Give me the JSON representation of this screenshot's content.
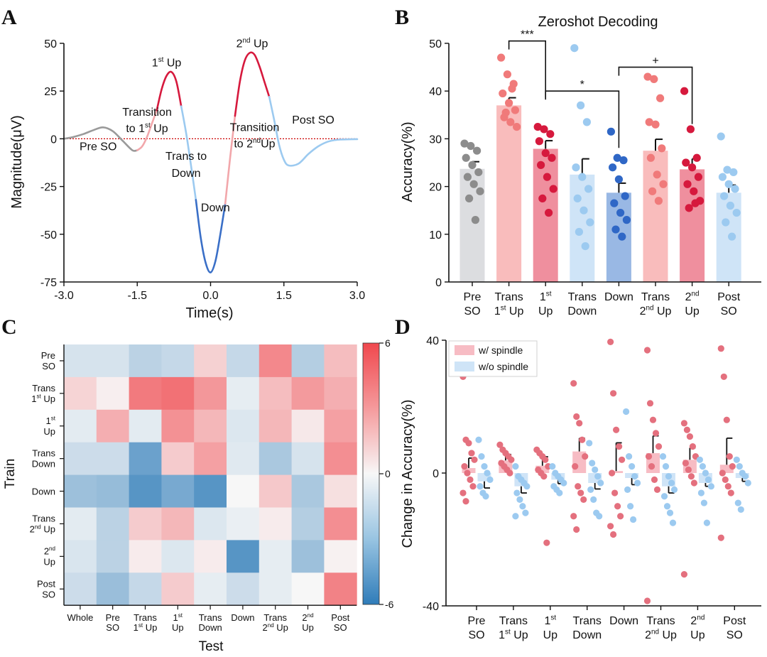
{
  "panels": {
    "A": "A",
    "B": "B",
    "C": "C",
    "D": "D"
  },
  "colors": {
    "pre": "#a9a9a9",
    "up": "#d6193d",
    "trans_up": "#f19a9e",
    "trans_down": "#9ccaf0",
    "down": "#3a6fc7",
    "post": "#9ccaf0",
    "threshold": "#cc0000"
  },
  "chart_data": [
    {
      "panel": "A",
      "type": "line",
      "xlabel": "Time(s)",
      "ylabel": "Magnitude(μV)",
      "xlim": [
        -3.0,
        3.0
      ],
      "ylim": [
        -75,
        50
      ],
      "xticks": [
        "-3.0",
        "-1.5",
        "0.0",
        "1.5",
        "3.0"
      ],
      "yticks": [
        "50",
        "25",
        "0",
        "-25",
        "-50",
        "-75"
      ],
      "threshold": 0,
      "segments": [
        {
          "phase": "Pre SO",
          "color": "#9a9a9a",
          "x": [
            -3.0,
            -2.8,
            -2.6,
            -2.4,
            -2.2,
            -2.0,
            -1.8,
            -1.6,
            -1.5
          ],
          "y": [
            0,
            1,
            2.5,
            4.5,
            6,
            4,
            -1,
            -6,
            -6
          ]
        },
        {
          "phase": "Transition to 1st Up",
          "color": "#f2a7ab",
          "x": [
            -1.5,
            -1.4,
            -1.3,
            -1.2,
            -1.1
          ],
          "y": [
            -6,
            -4,
            1,
            8,
            15
          ]
        },
        {
          "phase": "1st Up",
          "color": "#d6193d",
          "x": [
            -1.1,
            -1.0,
            -0.9,
            -0.8,
            -0.7,
            -0.6
          ],
          "y": [
            15,
            26,
            33,
            35,
            30,
            17
          ]
        },
        {
          "phase": "Trans to Down",
          "color": "#9ccaf0",
          "x": [
            -0.6,
            -0.5,
            -0.4,
            -0.3
          ],
          "y": [
            17,
            3,
            -14,
            -32
          ]
        },
        {
          "phase": "Down",
          "color": "#3a6fc7",
          "x": [
            -0.3,
            -0.2,
            -0.1,
            0.0,
            0.1,
            0.2,
            0.3
          ],
          "y": [
            -32,
            -52,
            -65,
            -70,
            -64,
            -50,
            -34
          ]
        },
        {
          "phase": "Transition to 2nd Up",
          "color": "#f2a7ab",
          "x": [
            0.3,
            0.4,
            0.5
          ],
          "y": [
            -34,
            -10,
            12
          ]
        },
        {
          "phase": "2nd Up",
          "color": "#d6193d",
          "x": [
            0.5,
            0.6,
            0.7,
            0.8,
            0.9,
            1.0,
            1.1,
            1.2
          ],
          "y": [
            12,
            30,
            41,
            45,
            44,
            38,
            30,
            22
          ]
        },
        {
          "phase": "Post SO",
          "color": "#9ccaf0",
          "x": [
            1.2,
            1.3,
            1.4,
            1.5,
            1.6,
            1.8,
            2.0,
            2.2,
            2.4,
            2.6,
            2.8,
            3.0
          ],
          "y": [
            22,
            10,
            -3,
            -11,
            -14,
            -13,
            -8,
            -4,
            -1.5,
            -0.5,
            -0.3,
            -0.2
          ]
        }
      ],
      "annotations": [
        {
          "text": "1",
          "sup": "st",
          "tail": " Up",
          "x": -0.9,
          "y": 38
        },
        {
          "text": "2",
          "sup": "nd",
          "tail": " Up",
          "x": 0.85,
          "y": 48
        },
        {
          "text": "Transition",
          "x": -1.3,
          "y": 12
        },
        {
          "text": "to 1",
          "sup": "st",
          "tail": " Up",
          "x": -1.3,
          "y": 3.5
        },
        {
          "text": "Transition",
          "x": 0.9,
          "y": 4
        },
        {
          "text": "to 2",
          "sup": "nd",
          "tail": "Up",
          "x": 0.9,
          "y": -4.5
        },
        {
          "text": "Pre SO",
          "x": -2.3,
          "y": -6
        },
        {
          "text": "Trans to",
          "x": -0.5,
          "y": -11
        },
        {
          "text": "Down",
          "x": -0.5,
          "y": -20
        },
        {
          "text": "Down",
          "x": 0.1,
          "y": -38
        },
        {
          "text": "Post SO",
          "x": 2.1,
          "y": 8
        }
      ]
    },
    {
      "panel": "B",
      "type": "bar",
      "title": "Zeroshot Decoding",
      "ylabel": "Accuracy(%)",
      "ylim": [
        0,
        50
      ],
      "yticks": [
        "0",
        "10",
        "20",
        "30",
        "40",
        "50"
      ],
      "categories": [
        {
          "l1": "Pre",
          "l2": "SO"
        },
        {
          "l1": "Trans",
          "l2": "1",
          "sup": "st",
          "tail": " Up"
        },
        {
          "l1": "1",
          "l1sup": "st",
          "l2": "Up"
        },
        {
          "l1": "Trans",
          "l2": "Down"
        },
        {
          "l1": "Down",
          "l2": ""
        },
        {
          "l1": "Trans",
          "l2": "2",
          "sup": "nd",
          "tail": " Up"
        },
        {
          "l1": "2",
          "l1sup": "nd",
          "l2": "Up"
        },
        {
          "l1": "Post",
          "l2": "SO"
        }
      ],
      "values": [
        23.7,
        37.0,
        27.9,
        22.5,
        18.7,
        27.5,
        23.6,
        18.7
      ],
      "errors": [
        1.5,
        1.6,
        1.7,
        3.3,
        2.0,
        2.4,
        2.2,
        1.6
      ],
      "bar_colors": [
        "#dcdde0",
        "#f9bcbc",
        "#ef8f9e",
        "#cfe4f7",
        "#99b8e4",
        "#f9bcbc",
        "#ef8f9e",
        "#cfe4f7"
      ],
      "point_colors": [
        "#8c8c8c",
        "#f07a7a",
        "#d6193d",
        "#9ccaf0",
        "#2f67c6",
        "#f07a7a",
        "#d6193d",
        "#9ccaf0"
      ],
      "points": [
        [
          29,
          28.5,
          27.5,
          26,
          24.5,
          23,
          22,
          20.5,
          19,
          17.5,
          13
        ],
        [
          47,
          43.5,
          41.5,
          39.5,
          37.5,
          36,
          34.5,
          33.5,
          32.5,
          35.5,
          40.5
        ],
        [
          32.5,
          32,
          31,
          29.5,
          27,
          26,
          24.5,
          22,
          19.5,
          17.5,
          14.5
        ],
        [
          49,
          37,
          33.5,
          24,
          22,
          19.5,
          17.5,
          15,
          12.5,
          10.5,
          7.5
        ],
        [
          31.5,
          26,
          25.5,
          24,
          21.5,
          18,
          16.5,
          14.5,
          13,
          11,
          9.5
        ],
        [
          43,
          42.5,
          38.5,
          33.5,
          33,
          28,
          26,
          22.5,
          20.5,
          19,
          17
        ],
        [
          40,
          32,
          26,
          25,
          24,
          22,
          20.5,
          19,
          17,
          15.5,
          16.5
        ],
        [
          30.5,
          23.5,
          23,
          22,
          20.5,
          19.5,
          18,
          16,
          14.5,
          12.5,
          9.5
        ]
      ],
      "significance": [
        {
          "label": "***",
          "from": 1,
          "to": 2,
          "y": 50.5
        },
        {
          "label": "*",
          "from": 2,
          "to": 4,
          "y": 40
        },
        {
          "label": "+",
          "from": 4,
          "to": 6,
          "y": 45
        }
      ]
    },
    {
      "panel": "C",
      "type": "heatmap",
      "xlabel": "Test",
      "ylabel": "Train",
      "x_categories": [
        {
          "l1": "Whole",
          "l2": ""
        },
        {
          "l1": "Pre",
          "l2": "SO"
        },
        {
          "l1": "Trans",
          "l2": "1",
          "sup": "st",
          "tail": " Up"
        },
        {
          "l1": "1",
          "l1sup": "st",
          "l2": "Up"
        },
        {
          "l1": "Trans",
          "l2": "Down"
        },
        {
          "l1": "Down",
          "l2": ""
        },
        {
          "l1": "Trans",
          "l2": "2",
          "sup": "nd",
          "tail": " Up"
        },
        {
          "l1": "2",
          "l1sup": "nd",
          "l2": "Up"
        },
        {
          "l1": "Post",
          "l2": "SO"
        }
      ],
      "y_categories": [
        {
          "l1": "Pre",
          "l2": "SO"
        },
        {
          "l1": "Trans",
          "l2": "1",
          "sup": "st",
          "tail": " Up"
        },
        {
          "l1": "1",
          "l1sup": "st",
          "l2": "Up"
        },
        {
          "l1": "Trans",
          "l2": "Down"
        },
        {
          "l1": "Down",
          "l2": ""
        },
        {
          "l1": "Trans",
          "l2": "2",
          "sup": "nd",
          "tail": " Up"
        },
        {
          "l1": "2",
          "l1sup": "nd",
          "l2": "Up"
        },
        {
          "l1": "Post",
          "l2": "SO"
        }
      ],
      "zlim": [
        -6,
        6
      ],
      "colorbar_ticks": [
        "6",
        "0",
        "-6"
      ],
      "values": [
        [
          -1.0,
          -1.0,
          -1.8,
          -1.5,
          1.3,
          -1.5,
          3.8,
          -2.0,
          2.0
        ],
        [
          1.2,
          0.3,
          4.3,
          4.6,
          3.3,
          -0.5,
          2.0,
          3.2,
          2.5
        ],
        [
          -0.6,
          2.5,
          -0.6,
          3.5,
          2.2,
          -0.8,
          2.2,
          0.5,
          3.0
        ],
        [
          -1.3,
          -1.3,
          -4.2,
          1.5,
          3.0,
          -0.7,
          -2.3,
          -1.0,
          3.6
        ],
        [
          -2.7,
          -2.9,
          -4.8,
          -3.8,
          -4.8,
          0.0,
          1.6,
          -2.3,
          0.8
        ],
        [
          -0.6,
          -1.8,
          1.5,
          2.2,
          -0.8,
          -0.4,
          0.4,
          -2.0,
          3.6
        ],
        [
          -0.9,
          -1.8,
          0.4,
          -0.8,
          0.4,
          -4.8,
          -0.5,
          -2.7,
          0.2
        ],
        [
          -1.3,
          -2.8,
          -1.5,
          1.5,
          -0.5,
          -1.3,
          -0.5,
          0.0,
          4.0
        ]
      ]
    },
    {
      "panel": "D",
      "type": "bar",
      "ylabel": "Change in Accuracy(%)",
      "ylim": [
        -40,
        40
      ],
      "yticks": [
        "40",
        "0",
        "-40"
      ],
      "categories": [
        {
          "l1": "Pre",
          "l2": "SO"
        },
        {
          "l1": "Trans",
          "l2": "1",
          "sup": "st",
          "tail": " Up"
        },
        {
          "l1": "1",
          "l1sup": "st",
          "l2": "Up"
        },
        {
          "l1": "Trans",
          "l2": "Down"
        },
        {
          "l1": "Down",
          "l2": ""
        },
        {
          "l1": "Trans",
          "l2": "2",
          "sup": "nd",
          "tail": " Up"
        },
        {
          "l1": "2",
          "l1sup": "nd",
          "l2": "Up"
        },
        {
          "l1": "Post",
          "l2": "SO"
        }
      ],
      "legend": {
        "position": "top-left",
        "entries": [
          "w/ spindle",
          "w/o spindle"
        ]
      },
      "series": [
        {
          "name": "w/ spindle",
          "bar_color": "#f7bcc4",
          "point_color": "#e4707e",
          "values": [
            1.5,
            3.8,
            2.2,
            6.5,
            0.6,
            6.0,
            4.0,
            2.5
          ],
          "errors": [
            3.0,
            1.8,
            2.7,
            4.0,
            8.5,
            5.2,
            3.6,
            8.0
          ],
          "points": [
            [
              29,
              10,
              9,
              6,
              4,
              2,
              0,
              -2,
              -4,
              -6,
              -8.5
            ],
            [
              8.5,
              7,
              6,
              5,
              4,
              3,
              2,
              1,
              0
            ],
            [
              7,
              6,
              5,
              4,
              2,
              1,
              0,
              -1,
              -21
            ],
            [
              27,
              17,
              15,
              10,
              5,
              2,
              -4,
              -6,
              -8,
              -13,
              -17
            ],
            [
              39.5,
              24,
              13,
              8,
              4,
              0,
              -6,
              -10,
              -13,
              -16,
              -18.5
            ],
            [
              37,
              21,
              16,
              12,
              8,
              5,
              2,
              -2,
              -5,
              -38.5
            ],
            [
              15,
              13,
              11,
              8,
              5,
              3,
              1,
              -1,
              -3,
              -30.5
            ],
            [
              37.5,
              29,
              16,
              5,
              2,
              0,
              -2,
              -4,
              -6,
              -19.5
            ]
          ]
        },
        {
          "name": "w/o spindle",
          "bar_color": "#cfe4f7",
          "point_color": "#9ccaf0",
          "values": [
            -2.5,
            -4.0,
            -2.0,
            -3.0,
            -1.5,
            -4.0,
            -3.0,
            -1.5
          ],
          "errors": [
            2.0,
            2.0,
            1.2,
            1.8,
            2.0,
            2.0,
            1.0,
            1.0
          ],
          "points": [
            [
              10,
              5,
              2,
              0,
              -2,
              -4,
              -6,
              -7
            ],
            [
              2,
              -1,
              -2,
              -3,
              -4,
              -6,
              -8,
              -10,
              -12,
              -13
            ],
            [
              2,
              0,
              -1,
              -2,
              -3,
              -4,
              -5,
              -6
            ],
            [
              9,
              3,
              1,
              -1,
              -3,
              -5,
              -8,
              -12,
              -13
            ],
            [
              18.5,
              5,
              2,
              -1,
              -3,
              -5,
              -10,
              -14
            ],
            [
              5,
              2,
              -1,
              -3,
              -5,
              -7,
              -10,
              -12,
              -15
            ],
            [
              4,
              2,
              0,
              -2,
              -4,
              -6,
              -9,
              -15
            ],
            [
              4,
              2,
              0,
              -1,
              -3,
              -9,
              -11
            ]
          ]
        }
      ]
    }
  ]
}
